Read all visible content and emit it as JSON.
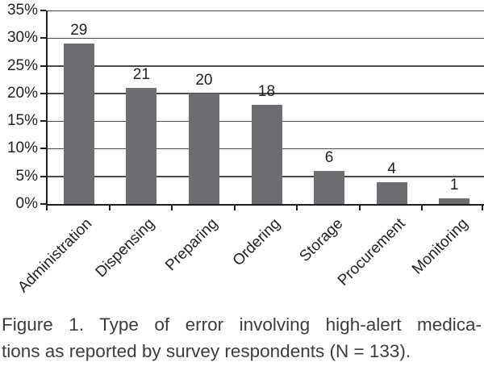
{
  "chart_data": {
    "type": "bar",
    "title": "",
    "categories": [
      "Administration",
      "Dispensing",
      "Preparing",
      "Ordering",
      "Storage",
      "Procurement",
      "Monitoring"
    ],
    "values": [
      29,
      21,
      20,
      18,
      6,
      4,
      1
    ],
    "value_labels": [
      "29",
      "21",
      "20",
      "18",
      "6",
      "4",
      "1"
    ],
    "xlabel": "",
    "ylabel": "",
    "ylim": [
      0,
      35
    ],
    "y_tick_step": 5,
    "y_tick_labels": [
      "0%",
      "5%",
      "10%",
      "15%",
      "20%",
      "25%",
      "30%",
      "35%"
    ],
    "grid": "horizontal gridlines on",
    "legend": "none",
    "bar_color": "#6d6e71",
    "gridline_color": "#4b4b4d",
    "axis_color": "#231f20",
    "text_color": "#231f20"
  },
  "caption": {
    "line1": "Figure 1. Type of error involving high-alert medica-",
    "line2": "tions as reported by survey respondents (N = 133)."
  }
}
